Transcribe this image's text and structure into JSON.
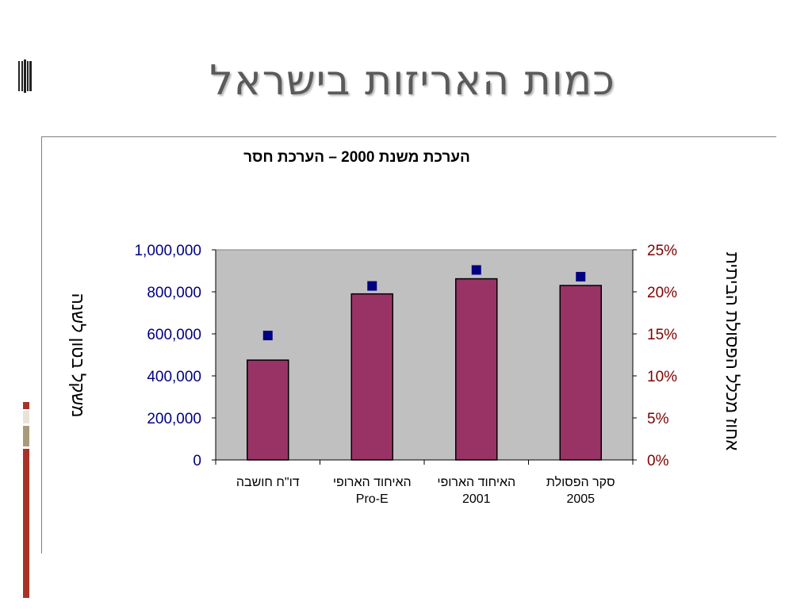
{
  "slide": {
    "title": "כמות האריזות בישראל"
  },
  "chart_data": {
    "type": "bar",
    "title": "הערכת משנת 2000 – הערכת חסר",
    "categories": [
      [
        "דו\"ח חושבה"
      ],
      [
        "האיחוד הארופי",
        "Pro-E"
      ],
      [
        "האיחוד הארופי",
        "2001"
      ],
      [
        "סקר הפסולת",
        "2005"
      ]
    ],
    "series": [
      {
        "values": [
          475000,
          790000,
          862000,
          830000
        ],
        "axis": "left",
        "style": "bar",
        "color": "#993366"
      },
      {
        "values": [
          0.148,
          0.207,
          0.226,
          0.218
        ],
        "axis": "right",
        "style": "marker",
        "color": "#000080"
      }
    ],
    "ylabel": "משקל בטון לשנה",
    "y2label": "אחוז מכלל הפסולת הביתית",
    "ylim": [
      0,
      1000000
    ],
    "y2lim": [
      0,
      0.25
    ],
    "yticks": [
      "0",
      "200,000",
      "400,000",
      "600,000",
      "800,000",
      "1,000,000"
    ],
    "y2ticks": [
      "0%",
      "5%",
      "10%",
      "15%",
      "20%",
      "25%"
    ],
    "plot_background": "#c0c0c0",
    "left_axis_color": "#000080",
    "right_axis_color": "#800000",
    "legend": "none"
  }
}
